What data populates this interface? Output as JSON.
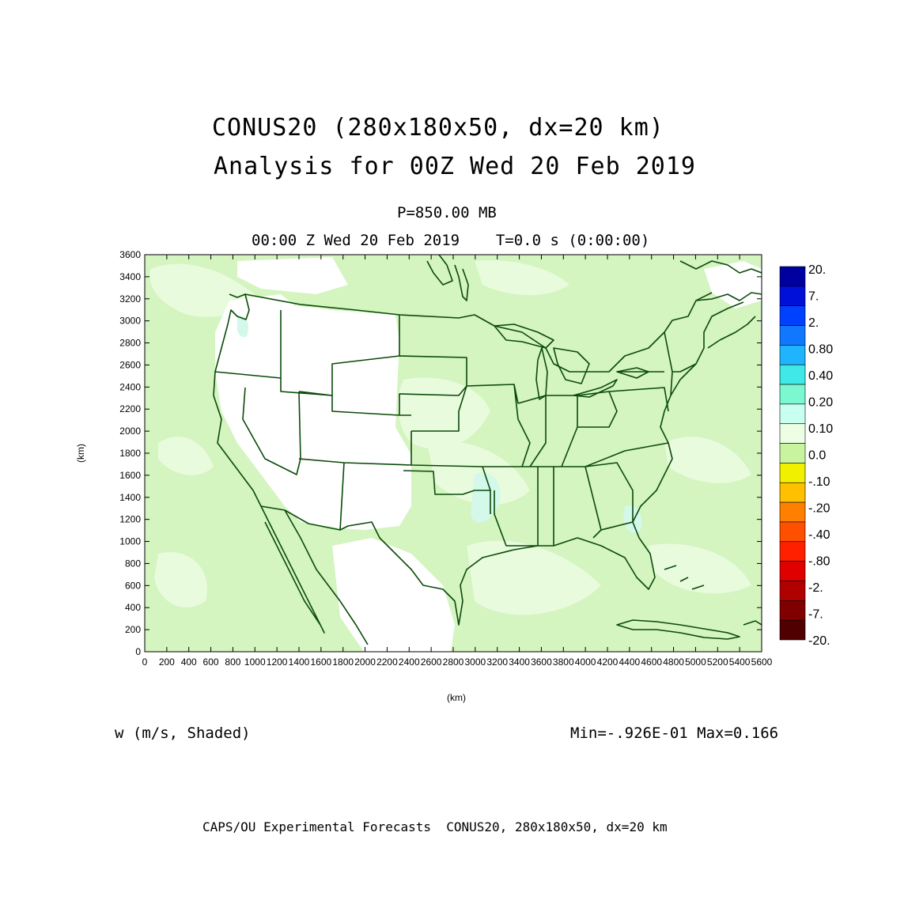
{
  "title_line1": "CONUS20 (280x180x50, dx=20 km)",
  "title_line2": "Analysis for 00Z Wed 20 Feb 2019",
  "level_label": "P=850.00 MB",
  "time_label": "00:00 Z Wed 20 Feb 2019    T=0.0 s (0:00:00)",
  "field_label": "w (m/s, Shaded)",
  "minmax_label": "Min=-.926E-01 Max=0.166",
  "footer": "CAPS/OU Experimental Forecasts  CONUS20, 280x180x50, dx=20 km",
  "axis": {
    "xlabel": "(km)",
    "ylabel": "(km)",
    "x_ticks": [
      "0",
      "200",
      "400",
      "600",
      "800",
      "1000",
      "1200",
      "1400",
      "1600",
      "1800",
      "2000",
      "2200",
      "2400",
      "2600",
      "2800",
      "3000",
      "3200",
      "3400",
      "3600",
      "3800",
      "4000",
      "4200",
      "4400",
      "4600",
      "4800",
      "5000",
      "5200",
      "5400",
      "5600"
    ],
    "y_ticks": [
      "0",
      "200",
      "400",
      "600",
      "800",
      "1000",
      "1200",
      "1400",
      "1600",
      "1800",
      "2000",
      "2200",
      "2400",
      "2600",
      "2800",
      "3000",
      "3200",
      "3400",
      "3600"
    ],
    "xlim": [
      0,
      5600
    ],
    "ylim": [
      0,
      3600
    ]
  },
  "colorbar": {
    "labels": [
      "20.",
      "7.",
      "2.",
      "0.80",
      "0.40",
      "0.20",
      "0.10",
      "0.0",
      "-.10",
      "-.20",
      "-.40",
      "-.80",
      "-2.",
      "-7.",
      "-20."
    ],
    "colors": [
      "#0000a0",
      "#0010d8",
      "#0040ff",
      "#1078ff",
      "#20b4ff",
      "#40e8e8",
      "#7cf8d0",
      "#c8fff0",
      "#ecffe4",
      "#c8f4a0",
      "#f0f000",
      "#ffc000",
      "#ff8000",
      "#ff5000",
      "#ff2000",
      "#e00000",
      "#b00000",
      "#800000",
      "#500000"
    ]
  },
  "colors": {
    "field_base": "#d4f4c0",
    "field_light": "#e8fbdc",
    "field_white": "#ffffff",
    "field_teal": "#d4f8ea",
    "outline": "#0a4a0a"
  }
}
